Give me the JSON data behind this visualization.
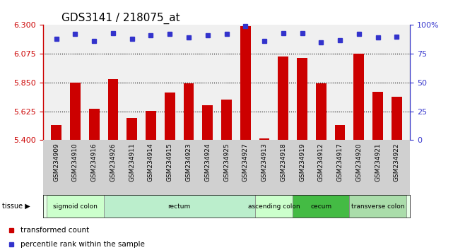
{
  "title": "GDS3141 / 218075_at",
  "samples": [
    "GSM234909",
    "GSM234910",
    "GSM234916",
    "GSM234926",
    "GSM234911",
    "GSM234914",
    "GSM234915",
    "GSM234923",
    "GSM234924",
    "GSM234925",
    "GSM234927",
    "GSM234913",
    "GSM234918",
    "GSM234919",
    "GSM234912",
    "GSM234917",
    "GSM234920",
    "GSM234921",
    "GSM234922"
  ],
  "bar_values": [
    5.52,
    5.85,
    5.645,
    5.875,
    5.57,
    5.63,
    5.77,
    5.845,
    5.67,
    5.715,
    6.29,
    5.41,
    6.055,
    6.04,
    5.845,
    5.52,
    6.075,
    5.775,
    5.74
  ],
  "blue_values": [
    88,
    92,
    86,
    93,
    88,
    91,
    92,
    89,
    91,
    92,
    99,
    86,
    93,
    93,
    85,
    87,
    92,
    89,
    90
  ],
  "bar_color": "#cc0000",
  "blue_color": "#3333cc",
  "ymin": 5.4,
  "ymax": 6.3,
  "y2min": 0,
  "y2max": 100,
  "yticks": [
    5.4,
    5.625,
    5.85,
    6.075,
    6.3
  ],
  "y2ticks": [
    0,
    25,
    50,
    75,
    100
  ],
  "y2ticklabels": [
    "0",
    "25",
    "50",
    "75",
    "100%"
  ],
  "hlines": [
    5.625,
    5.85,
    6.075
  ],
  "tissue_groups": [
    {
      "label": "sigmoid colon",
      "start": 0,
      "end": 3,
      "color": "#ccffcc"
    },
    {
      "label": "rectum",
      "start": 3,
      "end": 11,
      "color": "#bbeecc"
    },
    {
      "label": "ascending colon",
      "start": 11,
      "end": 13,
      "color": "#ccffcc"
    },
    {
      "label": "cecum",
      "start": 13,
      "end": 16,
      "color": "#44bb44"
    },
    {
      "label": "transverse colon",
      "start": 16,
      "end": 19,
      "color": "#aaddaa"
    }
  ],
  "legend_bar_label": "transformed count",
  "legend_blue_label": "percentile rank within the sample",
  "title_fontsize": 11,
  "axis_label_color_left": "#cc0000",
  "axis_label_color_right": "#3333cc",
  "plot_bg": "#f0f0f0",
  "fig_bg": "#ffffff",
  "label_band_color": "#d0d0d0",
  "tissue_band_bg": "#e8ffe8"
}
